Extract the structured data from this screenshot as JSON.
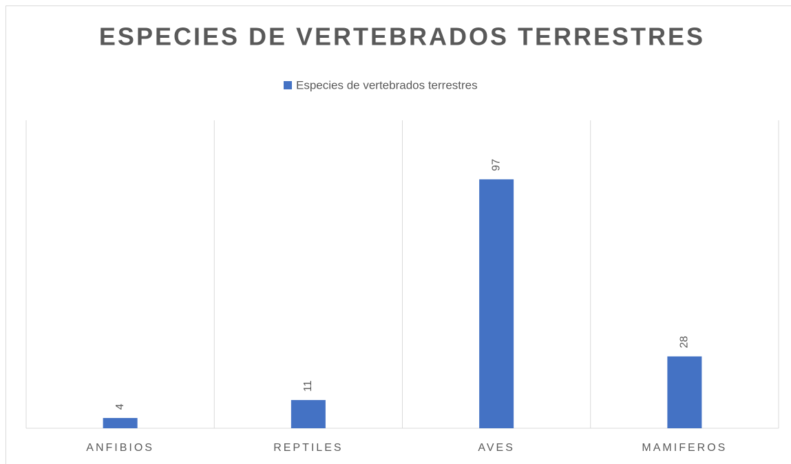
{
  "chart_data": {
    "type": "bar",
    "title": "ESPECIES DE VERTEBRADOS TERRESTRES",
    "legend": "Especies de vertebrados terrestres",
    "categories": [
      "ANFIBIOS",
      "REPTILES",
      "AVES",
      "MAMIFEROS"
    ],
    "values": [
      4,
      11,
      97,
      28
    ],
    "color": "#4472c4",
    "ylim": [
      0,
      120
    ],
    "grid": true,
    "legend_position": "top"
  }
}
